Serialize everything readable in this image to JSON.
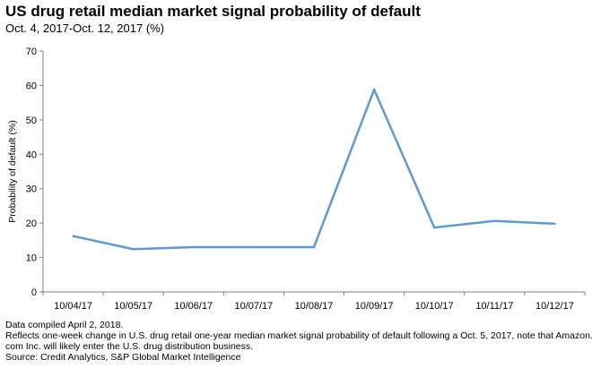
{
  "header": {
    "title": "US drug retail median market signal probability of default",
    "subtitle": "Oct. 4, 2017-Oct. 12, 2017 (%)"
  },
  "chart_data": {
    "type": "line",
    "title": "US drug retail median market signal probability of default",
    "subtitle": "Oct. 4, 2017-Oct. 12, 2017 (%)",
    "xlabel": "",
    "ylabel": "Probability of default (%)",
    "ylim": [
      0,
      70
    ],
    "yticks": [
      0,
      10,
      20,
      30,
      40,
      50,
      60,
      70
    ],
    "grid": false,
    "legend": "none",
    "categories": [
      "10/04/17",
      "10/05/17",
      "10/06/17",
      "10/07/17",
      "10/08/17",
      "10/09/17",
      "10/10/17",
      "10/11/17",
      "10/12/17"
    ],
    "series": [
      {
        "values": [
          16.2,
          12.4,
          13.0,
          13.0,
          13.0,
          58.8,
          18.7,
          20.6,
          19.8
        ],
        "color": "#5b9bd5"
      }
    ]
  },
  "footer": {
    "line1": "Data compiled April 2, 2018.",
    "line2": "Reflects one-week change in U.S. drug retail one-year median market signal probability of default following a Oct. 5, 2017, note that Amazon.",
    "line3": "com Inc. will likely enter the U.S. drug distribution business.",
    "line4": "Source: Credit Analytics, S&P Global Market Intelligence"
  }
}
